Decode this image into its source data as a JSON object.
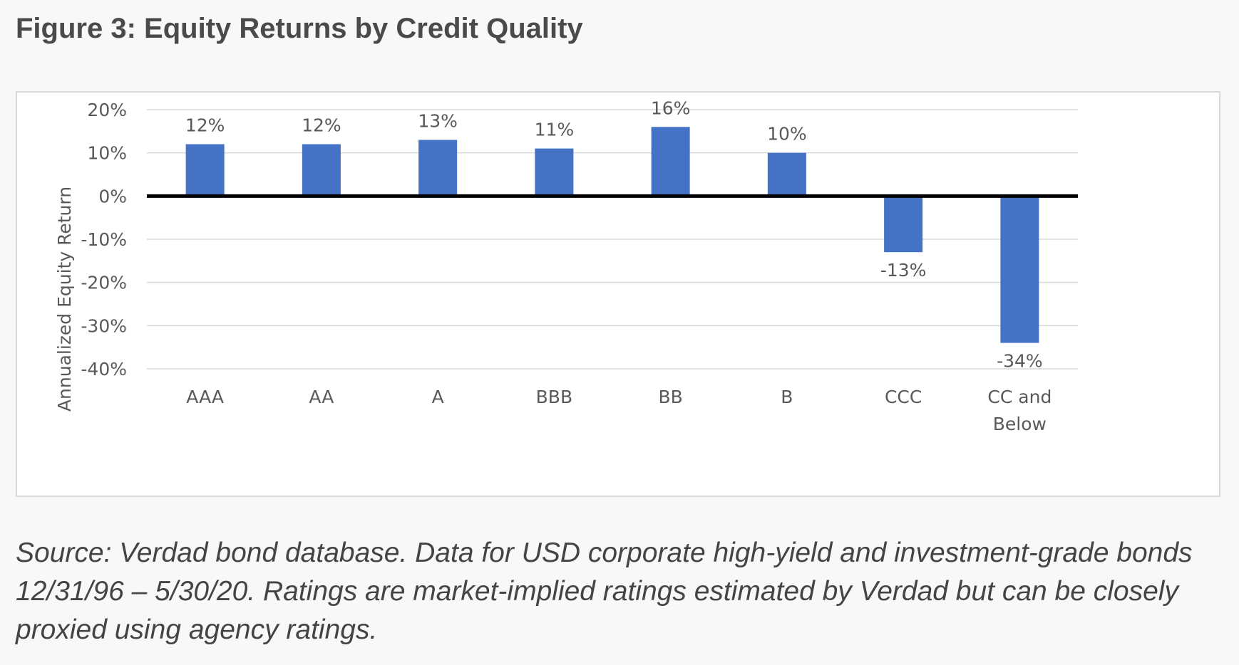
{
  "figure_title": "Figure 3: Equity Returns by Credit Quality",
  "caption": "Source: Verdad bond database. Data for USD corporate high-yield and investment-grade bonds 12/31/96 – 5/30/20. Ratings are market-implied ratings estimated by Verdad but can be closely proxied using agency ratings.",
  "colors": {
    "bar": "#4472c4",
    "grid": "#d9d9d9",
    "zero_line": "#000000",
    "text": "#595959"
  },
  "chart_data": {
    "type": "bar",
    "title": "",
    "xlabel": "",
    "ylabel": "Annualized Equity Return",
    "categories": [
      "AAA",
      "AA",
      "A",
      "BBB",
      "BB",
      "B",
      "CCC",
      "CC and Below"
    ],
    "values": [
      12,
      12,
      13,
      11,
      16,
      10,
      -13,
      -34
    ],
    "value_labels": [
      "12%",
      "12%",
      "13%",
      "11%",
      "16%",
      "10%",
      "-13%",
      "-34%"
    ],
    "ylim": [
      -40,
      20
    ],
    "yticks": [
      20,
      10,
      0,
      -10,
      -20,
      -30,
      -40
    ],
    "ytick_labels": [
      "20%",
      "10%",
      "0%",
      "-10%",
      "-20%",
      "-30%",
      "-40%"
    ],
    "grid": true,
    "legend": "none"
  }
}
